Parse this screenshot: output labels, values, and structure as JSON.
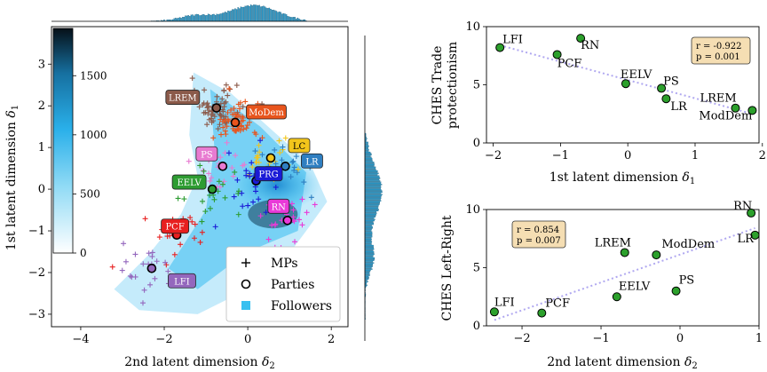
{
  "chart_data": [
    {
      "type": "scatter",
      "panel": "latent-space",
      "xlabel": "2nd latent dimension δ2",
      "ylabel": "1st latent dimension δ1",
      "xlim": [
        -4.7,
        2.4
      ],
      "ylim": [
        -3.3,
        3.9
      ],
      "xticks": [
        "−4",
        "−2",
        "0",
        "2"
      ],
      "xtick_values": [
        -4,
        -2,
        0,
        2
      ],
      "yticks": [
        "−3",
        "−2",
        "−1",
        "0",
        "1",
        "2",
        "3"
      ],
      "ytick_values": [
        -3,
        -2,
        -1,
        0,
        1,
        2,
        3
      ],
      "colorbar": {
        "ticks": [
          "0",
          "500",
          "1000",
          "1500"
        ],
        "tick_values": [
          0,
          500,
          1000,
          1500
        ],
        "max": 1900
      },
      "legend": {
        "position": "bottom-right",
        "entries": [
          {
            "label": "MPs",
            "marker": "plus"
          },
          {
            "label": "Parties",
            "marker": "open-circle"
          },
          {
            "label": "Followers",
            "marker": "square"
          }
        ]
      },
      "parties": [
        {
          "name": "LREM",
          "x": -0.75,
          "y": 1.95,
          "color": "#8b5a4a"
        },
        {
          "name": "MoDem",
          "x": -0.3,
          "y": 1.6,
          "color": "#e8541c"
        },
        {
          "name": "LC",
          "x": 0.55,
          "y": 0.75,
          "color": "#f2c51b"
        },
        {
          "name": "PS",
          "x": -0.6,
          "y": 0.55,
          "color": "#e87bd1"
        },
        {
          "name": "LR",
          "x": 0.9,
          "y": 0.55,
          "color": "#2f7fc1"
        },
        {
          "name": "EELV",
          "x": -0.85,
          "y": 0.0,
          "color": "#2e9c32"
        },
        {
          "name": "PRG",
          "x": 0.2,
          "y": 0.2,
          "color": "#1a1ad6"
        },
        {
          "name": "RN",
          "x": 0.95,
          "y": -0.75,
          "color": "#e93ad8"
        },
        {
          "name": "PCF",
          "x": -1.7,
          "y": -1.1,
          "color": "#e82020"
        },
        {
          "name": "LFI",
          "x": -2.3,
          "y": -1.9,
          "color": "#9467bd"
        }
      ]
    },
    {
      "type": "scatter",
      "panel": "trade-protectionism",
      "xlabel": "1st latent dimension δ1",
      "ylabel": "CHES Trade protectionism",
      "xlim": [
        -2.1,
        1.95
      ],
      "ylim": [
        0,
        10
      ],
      "xticks": [
        "−2",
        "−1",
        "0",
        "1",
        "2"
      ],
      "xtick_values": [
        -2,
        -1,
        0,
        1,
        2
      ],
      "yticks": [
        "0",
        "5",
        "10"
      ],
      "ytick_values": [
        0,
        5,
        10
      ],
      "stats": [
        "r = -0.922",
        "p = 0.001"
      ],
      "fit": {
        "x": [
          -1.9,
          1.85
        ],
        "y": [
          8.4,
          2.5
        ]
      },
      "points": [
        {
          "label": "LFI",
          "x": -1.9,
          "y": 8.2
        },
        {
          "label": "RN",
          "x": -0.7,
          "y": 9.0
        },
        {
          "label": "PCF",
          "x": -1.05,
          "y": 7.6
        },
        {
          "label": "EELV",
          "x": -0.03,
          "y": 5.1
        },
        {
          "label": "PS",
          "x": 0.5,
          "y": 4.7
        },
        {
          "label": "LR",
          "x": 0.57,
          "y": 3.8
        },
        {
          "label": "LREM",
          "x": 1.6,
          "y": 3.0
        },
        {
          "label": "ModDem",
          "x": 1.85,
          "y": 2.8
        }
      ]
    },
    {
      "type": "scatter",
      "panel": "left-right",
      "xlabel": "2nd latent dimension δ2",
      "ylabel": "CHES Left-Right",
      "xlim": [
        -2.45,
        1.0
      ],
      "ylim": [
        0,
        10
      ],
      "xticks": [
        "−2",
        "−1",
        "0",
        "1"
      ],
      "xtick_values": [
        -2,
        -1,
        0,
        1
      ],
      "yticks": [
        "0",
        "5",
        "10"
      ],
      "ytick_values": [
        0,
        5,
        10
      ],
      "stats": [
        "r = 0.854",
        "p = 0.007"
      ],
      "fit": {
        "x": [
          -2.35,
          0.95
        ],
        "y": [
          0.5,
          8.4
        ]
      },
      "points": [
        {
          "label": "LFI",
          "x": -2.35,
          "y": 1.2
        },
        {
          "label": "PCF",
          "x": -1.75,
          "y": 1.1
        },
        {
          "label": "EELV",
          "x": -0.8,
          "y": 2.5
        },
        {
          "label": "PS",
          "x": -0.05,
          "y": 3.0
        },
        {
          "label": "LREM",
          "x": -0.7,
          "y": 6.3
        },
        {
          "label": "ModDem",
          "x": -0.3,
          "y": 6.1
        },
        {
          "label": "RN",
          "x": 0.9,
          "y": 9.7
        },
        {
          "label": "LR",
          "x": 0.95,
          "y": 7.8
        }
      ]
    }
  ],
  "labels": {
    "main_xlabel": "2nd latent dimension",
    "main_xsub": "2",
    "main_ylabel": "1st latent dimension",
    "main_ysub": "1",
    "trade_xlabel": "1st latent dimension",
    "trade_xsub": "1",
    "trade_ylabel_1": "CHES Trade",
    "trade_ylabel_2": "protectionism",
    "lr_xlabel": "2nd latent dimension",
    "lr_xsub": "2",
    "lr_ylabel": "CHES Left-Right",
    "delta": "δ"
  },
  "colors": {
    "point_fill": "#2ca02c",
    "fit_line": "#b0a8f0",
    "stats_bg": "#f5deb3",
    "followers": "#38c0f0",
    "mp": "#333333"
  }
}
